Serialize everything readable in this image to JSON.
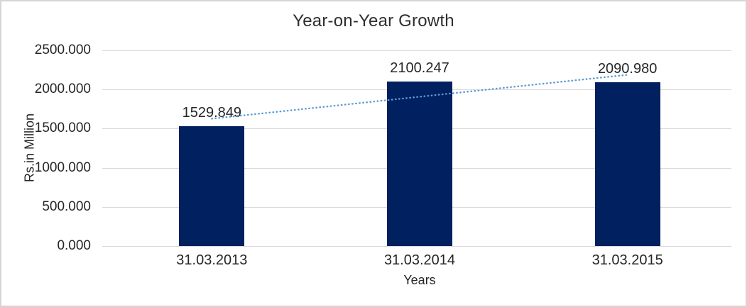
{
  "frame": {
    "background": "#FFFFFF",
    "border_color": "#D6D6D6"
  },
  "chart_data": {
    "type": "bar",
    "title": "Year-on-Year Growth",
    "categories": [
      "31.03.2013",
      "31.03.2014",
      "31.03.2015"
    ],
    "values": [
      1529.849,
      2100.247,
      2090.98
    ],
    "value_labels": [
      "1529.849",
      "2100.247",
      "2090.980"
    ],
    "xlabel": "Years",
    "ylabel": "Rs.in Million",
    "ylim": [
      0,
      2500
    ],
    "ytick_values": [
      0,
      500,
      1000,
      1500,
      2000,
      2500
    ],
    "ytick_labels": [
      "0.000",
      "500.000",
      "1000.000",
      "1500.000",
      "2000.000",
      "2500.000"
    ],
    "grid": true,
    "legend": "none",
    "bar_color": "#002060",
    "gridline_color": "#D9D9D9",
    "text_color": "#262626",
    "trendline": {
      "type": "linear",
      "style": "dotted",
      "color": "#5B9BD5"
    }
  }
}
